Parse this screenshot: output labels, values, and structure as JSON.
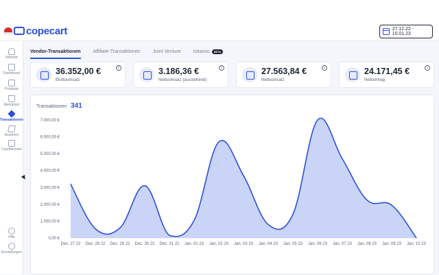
{
  "app": {
    "logo_text": "copecart"
  },
  "header": {
    "date_range": "27.12.22 - 10.01.23"
  },
  "sidebar": {
    "items": [
      {
        "label": "Aktivität",
        "icon": "bell-icon"
      },
      {
        "label": "Dashboard",
        "icon": "dashboard-icon"
      },
      {
        "label": "Produkte",
        "icon": "products-icon"
      },
      {
        "label": "Marktplatz",
        "icon": "basket-icon"
      },
      {
        "label": "Transaktionen",
        "icon": "transactions-icon",
        "active": true
      },
      {
        "label": "Academy",
        "icon": "cap-icon"
      },
      {
        "label": "CopeMember",
        "icon": "member-icon"
      }
    ],
    "help_label": "Hilfe",
    "settings_label": "Einstellungen"
  },
  "tabs": [
    {
      "label": "Vendor-Transaktionen",
      "active": true
    },
    {
      "label": "Affiliate-Transaktionen"
    },
    {
      "label": "Joint Venture"
    },
    {
      "label": "Inkasso",
      "badge": "BETA"
    }
  ],
  "kpis": [
    {
      "value": "36.352,00 €",
      "label": "Bruttoumsatz"
    },
    {
      "value": "3.186,36 €",
      "label": "Nettoumsatz (ausstehend)"
    },
    {
      "value": "27.563,84 €",
      "label": "Nettoumsatz"
    },
    {
      "value": "24.171,45 €",
      "label": "Nettoertrag"
    }
  ],
  "colors": {
    "accent": "#2d4fd6",
    "area_fill": "#c9d4f7",
    "line": "#2d4fd6"
  },
  "chart_data": {
    "type": "area",
    "title": "Transaktionen",
    "count": "341",
    "categories": [
      "Dez. 27 22",
      "Dez. 28 22",
      "Dez. 29 22",
      "Dez. 30 22",
      "Dez. 31 22",
      "Jan. 01 23",
      "Jan. 02 23",
      "Jan. 03 23",
      "Jan. 04 23",
      "Jan. 05 23",
      "Jan. 06 23",
      "Jan. 07 23",
      "Jan. 08 23",
      "Jan. 09 23",
      "Jan. 10 23"
    ],
    "values": [
      3200,
      550,
      600,
      3100,
      150,
      1050,
      5700,
      3700,
      800,
      1400,
      7000,
      4700,
      2250,
      1950,
      0
    ],
    "yticks": [
      "0,00 €",
      "1.000,00 €",
      "2.000,00 €",
      "3.000,00 €",
      "4.000,00 €",
      "5.000,00 €",
      "6.000,00 €",
      "7.000,00 €"
    ],
    "ylim": [
      0,
      7000
    ],
    "grid": false,
    "xlabel": "",
    "ylabel": ""
  }
}
